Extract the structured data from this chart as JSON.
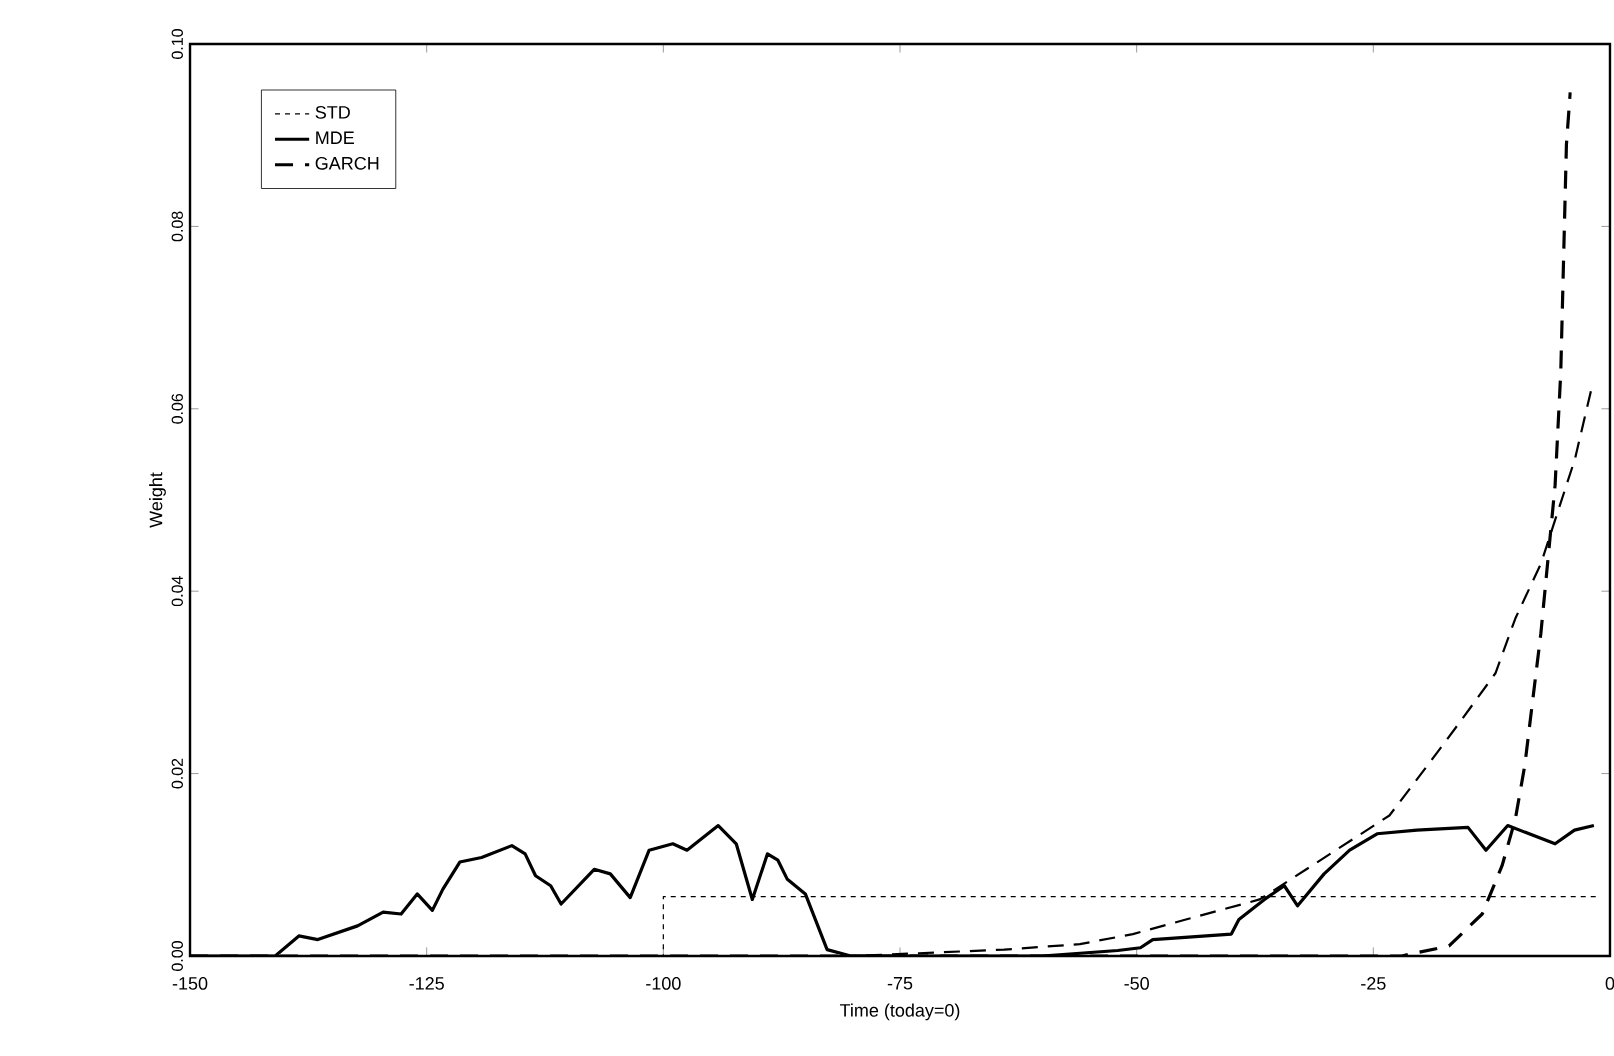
{
  "chart_data": {
    "type": "line",
    "xlabel": "Time (today=0)",
    "ylabel": "Weight",
    "xlim": [
      -150,
      0
    ],
    "xticks": [
      {
        "value": -150,
        "label": "-150"
      },
      {
        "value": -125,
        "label": "-125"
      },
      {
        "value": -100,
        "label": "-100"
      },
      {
        "value": -75,
        "label": "-75"
      },
      {
        "value": -50,
        "label": "-50"
      },
      {
        "value": -25,
        "label": "-25"
      },
      {
        "value": 0,
        "label": "0"
      }
    ],
    "ylim": [
      0,
      0.1
    ],
    "yticks": [
      {
        "value": 0,
        "label": "0.00"
      },
      {
        "value": 0.02,
        "label": "0.02"
      },
      {
        "value": 0.04,
        "label": "0.04"
      },
      {
        "value": 0.06,
        "label": "0.06"
      },
      {
        "value": 0.08,
        "label": "0.08"
      },
      {
        "value": 0.1,
        "label": "0.10"
      }
    ],
    "legend": "top left",
    "grid": false,
    "series": [
      {
        "name": "STD",
        "color": "#000000",
        "line_style": "dotted",
        "x": [
          -150,
          -100,
          -100,
          -1
        ],
        "values": [
          0,
          0,
          0.0065,
          0.0065
        ]
      },
      {
        "color": "#000000",
        "line_style": "dashdot",
        "x": [
          -150,
          -80,
          -73,
          -64,
          -56,
          -50.4,
          -44.8,
          -37,
          -23.3,
          -19.2,
          -15.6,
          -12.1,
          -10,
          -7.3,
          -3.7,
          -2
        ],
        "values": [
          0,
          0,
          0.0003,
          0.0007,
          0.0013,
          0.0024,
          0.004,
          0.0062,
          0.0154,
          0.021,
          0.026,
          0.031,
          0.037,
          0.043,
          0.0545,
          0.062
        ]
      },
      {
        "name": "MDE",
        "color": "#000000",
        "line_style": "solid",
        "x": [
          -150,
          -141,
          -138.5,
          -136.5,
          -132.3,
          -129.6,
          -127.7,
          -126,
          -124.4,
          -123.3,
          -121.5,
          -119.2,
          -116,
          -114.6,
          -113.5,
          -111.9,
          -110.8,
          -107.3,
          -105.6,
          -103.5,
          -101.5,
          -99,
          -97.5,
          -94.2,
          -92.3,
          -90.6,
          -89,
          -87.9,
          -86.9,
          -85,
          -82.7,
          -80.2,
          -60,
          -52,
          -49.6,
          -48.3,
          -40,
          -39.2,
          -36.5,
          -34.4,
          -33,
          -30.2,
          -27.5,
          -24.6,
          -20.4,
          -15,
          -13.1,
          -10.8,
          -5.8,
          -3.75,
          -1.7
        ],
        "values": [
          0,
          0,
          0.0022,
          0.0018,
          0.0033,
          0.0048,
          0.0046,
          0.0068,
          0.005,
          0.0073,
          0.0103,
          0.0108,
          0.0121,
          0.0112,
          0.0088,
          0.0077,
          0.0057,
          0.0095,
          0.009,
          0.0064,
          0.0116,
          0.0123,
          0.0116,
          0.0143,
          0.0123,
          0.0062,
          0.0112,
          0.0105,
          0.0084,
          0.0068,
          0.0007,
          0,
          0,
          0.0006,
          0.0009,
          0.0018,
          0.0024,
          0.004,
          0.0062,
          0.0077,
          0.0055,
          0.009,
          0.0116,
          0.0134,
          0.0138,
          0.0141,
          0.0116,
          0.0143,
          0.0123,
          0.0138,
          0.0143
        ]
      },
      {
        "name": "GARCH",
        "color": "#000000",
        "line_style": "dashed",
        "x": [
          -150,
          -22,
          -17,
          -13.5,
          -11.4,
          -10,
          -9,
          -7.3,
          -5.8,
          -5.2,
          -4.6,
          -4.2
        ],
        "values": [
          0,
          0,
          0.0011,
          0.0046,
          0.0099,
          0.015,
          0.0209,
          0.0354,
          0.0516,
          0.064,
          0.089,
          0.0947
        ]
      }
    ]
  }
}
